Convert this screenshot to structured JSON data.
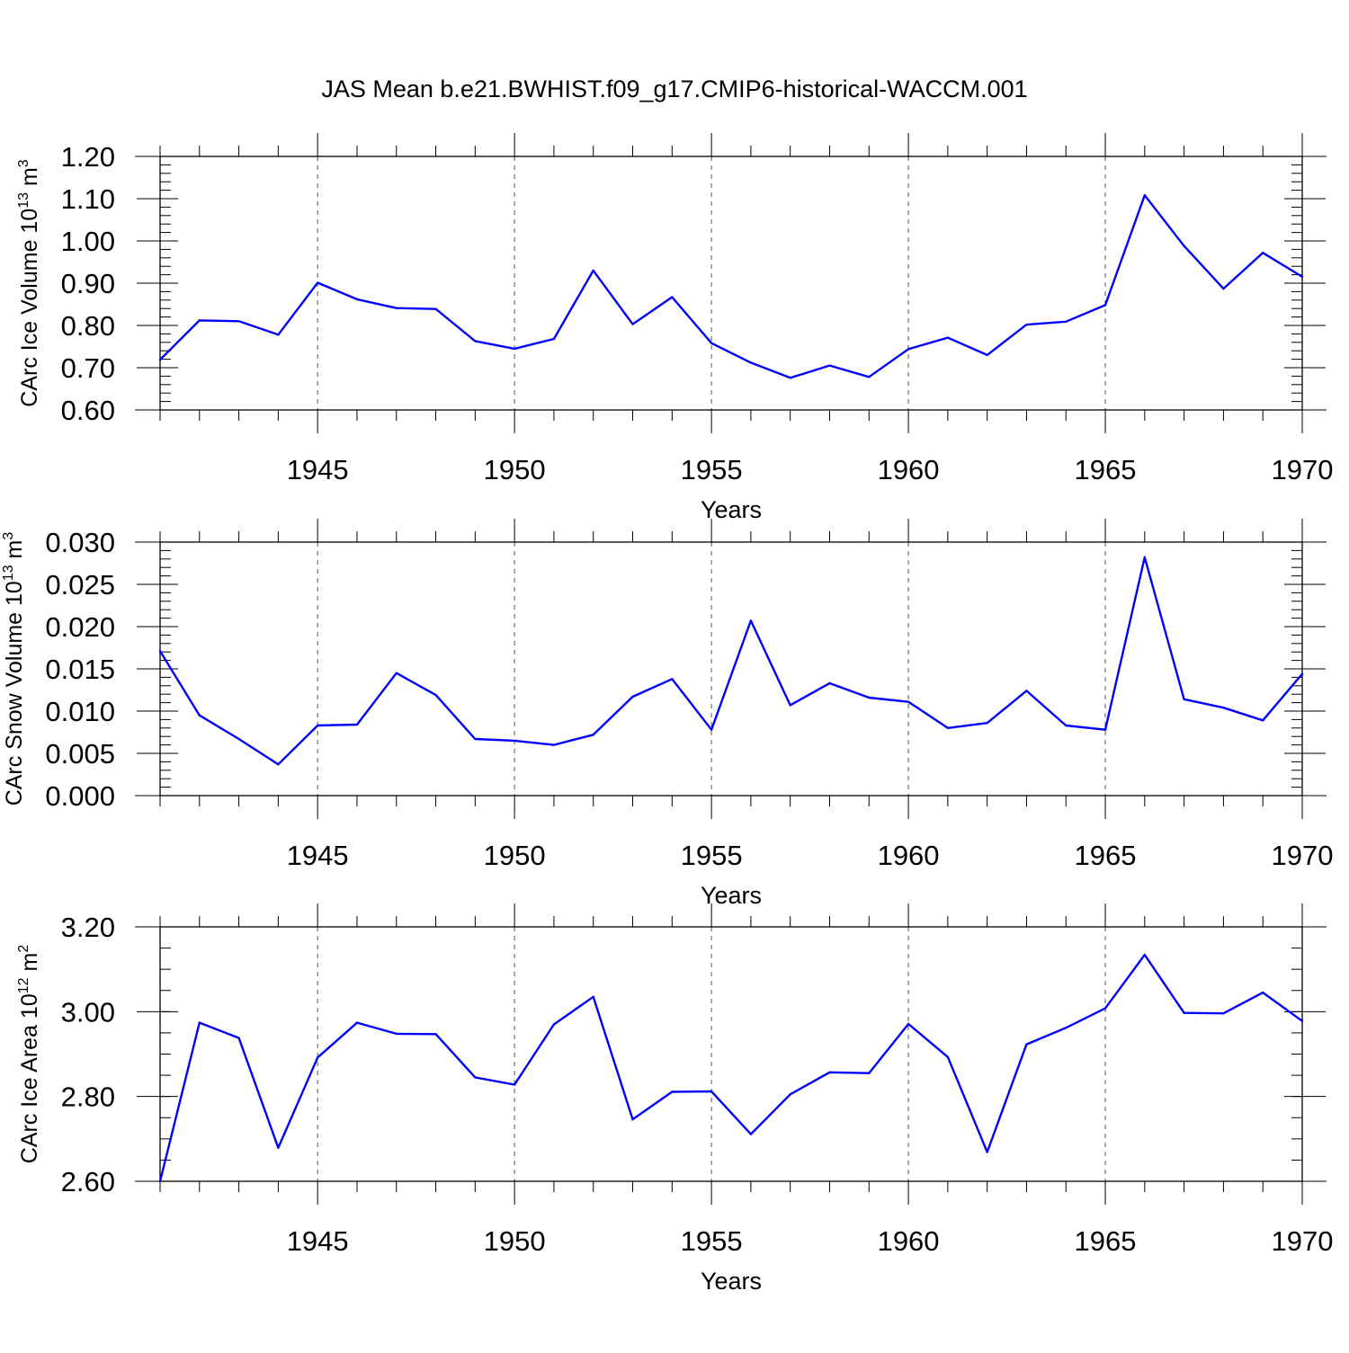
{
  "figure": {
    "title": "JAS Mean b.e21.BWHIST.f09_g17.CMIP6-historical-WACCM.001"
  },
  "style": {
    "line_color": "#0000ff",
    "axis_color": "#000000",
    "grid_color": "#555555"
  },
  "chart_data": [
    {
      "type": "line",
      "title": "",
      "xlabel": "Years",
      "ylabel": {
        "text": "CArc Ice Volume 10",
        "sup": "13",
        "unit": " m",
        "unit_sup": "3"
      },
      "xlim": [
        1941,
        1970
      ],
      "ylim": [
        0.6,
        1.2
      ],
      "xticks": [
        1945,
        1950,
        1955,
        1960,
        1965,
        1970
      ],
      "yticks": [
        0.6,
        0.7,
        0.8,
        0.9,
        1.0,
        1.1,
        1.2
      ],
      "ytick_labels": [
        "0.60",
        "0.70",
        "0.80",
        "0.90",
        "1.00",
        "1.10",
        "1.20"
      ],
      "grid": "vertical dashed at major x ticks",
      "x": [
        1941,
        1942,
        1943,
        1944,
        1945,
        1946,
        1947,
        1948,
        1949,
        1950,
        1951,
        1952,
        1953,
        1954,
        1955,
        1956,
        1957,
        1958,
        1959,
        1960,
        1961,
        1962,
        1963,
        1964,
        1965,
        1966,
        1967,
        1968,
        1969,
        1970
      ],
      "series": [
        {
          "values": [
            0.719,
            0.812,
            0.81,
            0.778,
            0.901,
            0.862,
            0.841,
            0.839,
            0.763,
            0.745,
            0.768,
            0.93,
            0.803,
            0.867,
            0.758,
            0.712,
            0.676,
            0.705,
            0.678,
            0.744,
            0.771,
            0.73,
            0.802,
            0.809,
            0.848,
            1.108,
            0.988,
            0.887,
            0.972,
            0.915
          ]
        }
      ]
    },
    {
      "type": "line",
      "title": "",
      "xlabel": "Years",
      "ylabel": {
        "text": "CArc Snow Volume 10",
        "sup": "13",
        "unit": " m",
        "unit_sup": "3"
      },
      "xlim": [
        1941,
        1970
      ],
      "ylim": [
        0.0,
        0.03
      ],
      "xticks": [
        1945,
        1950,
        1955,
        1960,
        1965,
        1970
      ],
      "yticks": [
        0.0,
        0.005,
        0.01,
        0.015,
        0.02,
        0.025,
        0.03
      ],
      "ytick_labels": [
        "0.000",
        "0.005",
        "0.010",
        "0.015",
        "0.020",
        "0.025",
        "0.030"
      ],
      "grid": "vertical dashed at major x ticks",
      "x": [
        1941,
        1942,
        1943,
        1944,
        1945,
        1946,
        1947,
        1948,
        1949,
        1950,
        1951,
        1952,
        1953,
        1954,
        1955,
        1956,
        1957,
        1958,
        1959,
        1960,
        1961,
        1962,
        1963,
        1964,
        1965,
        1966,
        1967,
        1968,
        1969,
        1970
      ],
      "series": [
        {
          "values": [
            0.0171,
            0.0095,
            0.0067,
            0.0037,
            0.0083,
            0.0084,
            0.0145,
            0.0119,
            0.0067,
            0.0065,
            0.006,
            0.0072,
            0.0117,
            0.0138,
            0.0078,
            0.0207,
            0.0107,
            0.0133,
            0.0116,
            0.0111,
            0.008,
            0.0086,
            0.0124,
            0.0083,
            0.0078,
            0.0282,
            0.0114,
            0.0104,
            0.0089,
            0.0144
          ]
        }
      ]
    },
    {
      "type": "line",
      "title": "",
      "xlabel": "Years",
      "ylabel": {
        "text": "CArc Ice Area 10",
        "sup": "12",
        "unit": " m",
        "unit_sup": "2"
      },
      "xlim": [
        1941,
        1970
      ],
      "ylim": [
        2.6,
        3.2
      ],
      "xticks": [
        1945,
        1950,
        1955,
        1960,
        1965,
        1970
      ],
      "yticks": [
        2.6,
        2.8,
        3.0,
        3.2
      ],
      "ytick_labels": [
        "2.60",
        "2.80",
        "3.00",
        "3.20"
      ],
      "minor_ytick_step": 0.05,
      "grid": "vertical dashed at major x ticks",
      "x": [
        1941,
        1942,
        1943,
        1944,
        1945,
        1946,
        1947,
        1948,
        1949,
        1950,
        1951,
        1952,
        1953,
        1954,
        1955,
        1956,
        1957,
        1958,
        1959,
        1960,
        1961,
        1962,
        1963,
        1964,
        1965,
        1966,
        1967,
        1968,
        1969,
        1970
      ],
      "series": [
        {
          "values": [
            2.6,
            2.974,
            2.938,
            2.679,
            2.892,
            2.974,
            2.948,
            2.947,
            2.845,
            2.828,
            2.97,
            3.035,
            2.746,
            2.811,
            2.812,
            2.711,
            2.805,
            2.857,
            2.855,
            2.971,
            2.893,
            2.669,
            2.923,
            2.962,
            3.008,
            3.134,
            2.997,
            2.996,
            3.045,
            2.978
          ]
        }
      ]
    }
  ]
}
